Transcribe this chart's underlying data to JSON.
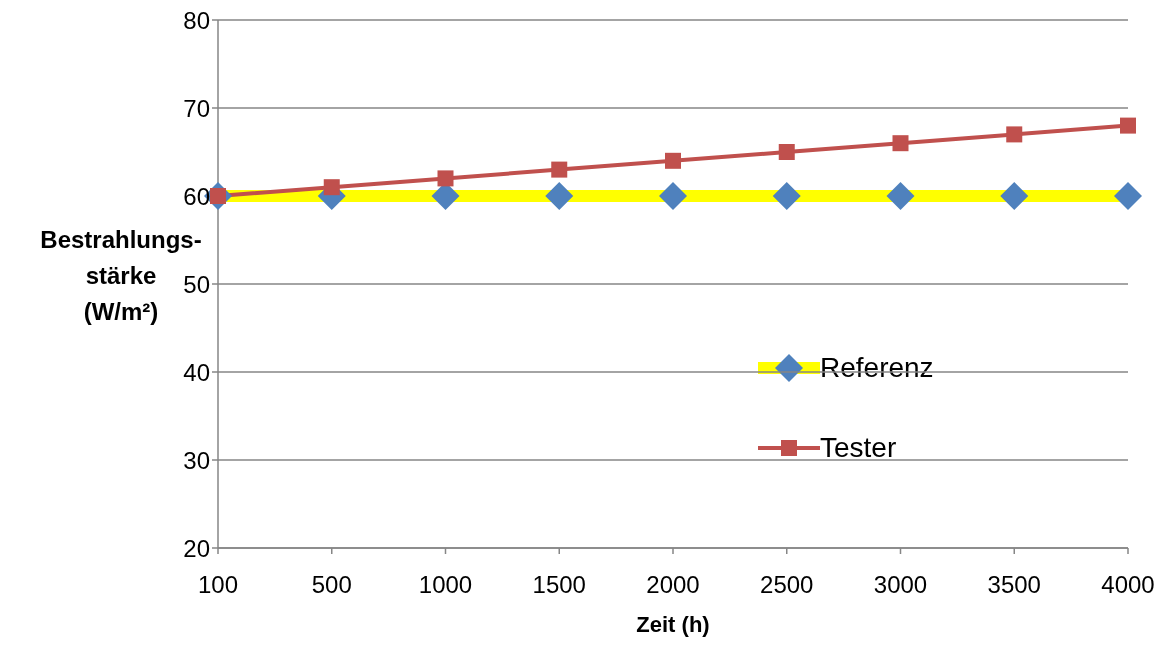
{
  "chart_data": {
    "type": "line",
    "xlabel": "Zeit (h)",
    "ylabel": "Bestrahlungs-\nstärke\n(W/m²)",
    "categories": [
      "100",
      "500",
      "1000",
      "1500",
      "2000",
      "2500",
      "3000",
      "3500",
      "4000"
    ],
    "series": [
      {
        "name": "Referenz",
        "color": "#ffff00",
        "colors": [
          "#4f81bd",
          "#4f81bd",
          "#4f81bd",
          "#4f81bd",
          "#4f81bd",
          "#4f81bd",
          "#4f81bd",
          "#4f81bd",
          "#4f81bd"
        ],
        "marker": "diamond",
        "values": [
          60,
          60,
          60,
          60,
          60,
          60,
          60,
          60,
          60
        ]
      },
      {
        "name": "Tester",
        "color": "#c0504d",
        "marker": "square",
        "values": [
          60,
          61,
          62,
          63,
          64,
          65,
          66,
          67,
          68
        ]
      }
    ],
    "ylim": [
      20,
      80
    ],
    "yticks": [
      20,
      30,
      40,
      50,
      60,
      70,
      80
    ],
    "grid": "y",
    "legend": "right",
    "line_style": "solid"
  }
}
